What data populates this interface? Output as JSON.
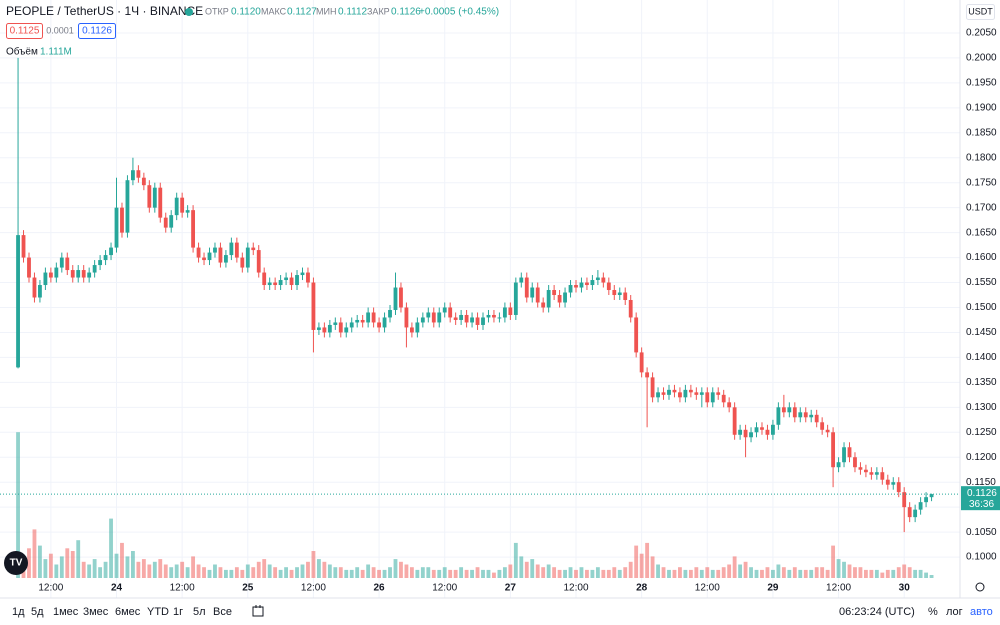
{
  "header": {
    "symbol": "PEOPLE / TetherUS · 1Ч · BINANCE",
    "open_label": "ОТКР",
    "open": "0.1120",
    "high_label": "МАКС",
    "high": "0.1127",
    "low_label": "МИН",
    "low": "0.1112",
    "close_label": "ЗАКР",
    "close": "0.1126",
    "change": "+0.0005 (+0.45%)",
    "sell": "0.1125",
    "spread": "0.0001",
    "buy": "0.1126",
    "volume_label": "Объём",
    "volume": "1.111M"
  },
  "axis": {
    "currency": "USDT",
    "last_price": "0.1126",
    "countdown": "36:36"
  },
  "toolbar": {
    "ranges": [
      "1д",
      "5д",
      "1мес",
      "3мес",
      "6мес",
      "YTD",
      "1г",
      "5л",
      "Все"
    ],
    "clock": "06:23:24 (UTC)",
    "percent": "%",
    "log": "лог",
    "auto": "авто"
  },
  "chart_data": {
    "type": "candlestick",
    "up_color": "#26a69a",
    "down_color": "#ef5350",
    "grid": true,
    "xlim": [
      -3.3,
      172.2
    ],
    "ylim": [
      0.0918,
      0.2116
    ],
    "xticks": [
      {
        "value": 6,
        "label": "12:00"
      },
      {
        "value": 18,
        "label": "24"
      },
      {
        "value": 30,
        "label": "12:00"
      },
      {
        "value": 42,
        "label": "25"
      },
      {
        "value": 54,
        "label": "12:00"
      },
      {
        "value": 66,
        "label": "26"
      },
      {
        "value": 78,
        "label": "12:00"
      },
      {
        "value": 90,
        "label": "27"
      },
      {
        "value": 102,
        "label": "12:00"
      },
      {
        "value": 114,
        "label": "28"
      },
      {
        "value": 126,
        "label": "12:00"
      },
      {
        "value": 138,
        "label": "29"
      },
      {
        "value": 150,
        "label": "12:00"
      },
      {
        "value": 162,
        "label": "30"
      }
    ],
    "yticks": [
      {
        "value": 0.1,
        "label": "0.1000"
      },
      {
        "value": 0.105,
        "label": "0.1050"
      },
      {
        "value": 0.11,
        "label": "0.1100"
      },
      {
        "value": 0.115,
        "label": "0.1150"
      },
      {
        "value": 0.12,
        "label": "0.1200"
      },
      {
        "value": 0.125,
        "label": "0.1250"
      },
      {
        "value": 0.13,
        "label": "0.1300"
      },
      {
        "value": 0.135,
        "label": "0.1350"
      },
      {
        "value": 0.14,
        "label": "0.1400"
      },
      {
        "value": 0.145,
        "label": "0.1450"
      },
      {
        "value": 0.15,
        "label": "0.1500"
      },
      {
        "value": 0.155,
        "label": "0.1550"
      },
      {
        "value": 0.16,
        "label": "0.1600"
      },
      {
        "value": 0.165,
        "label": "0.1650"
      },
      {
        "value": 0.17,
        "label": "0.1700"
      },
      {
        "value": 0.175,
        "label": "0.1750"
      },
      {
        "value": 0.18,
        "label": "0.1800"
      },
      {
        "value": 0.185,
        "label": "0.1850"
      },
      {
        "value": 0.19,
        "label": "0.1900"
      },
      {
        "value": 0.195,
        "label": "0.1950"
      },
      {
        "value": 0.2,
        "label": "0.2000"
      },
      {
        "value": 0.205,
        "label": "0.2050"
      }
    ],
    "last": 0.1126,
    "open": [
      0.138,
      0.1645,
      0.16,
      0.156,
      0.152,
      0.1545,
      0.157,
      0.156,
      0.158,
      0.16,
      0.1575,
      0.156,
      0.1575,
      0.156,
      0.157,
      0.1585,
      0.1595,
      0.1605,
      0.162,
      0.17,
      0.165,
      0.1755,
      0.1775,
      0.176,
      0.1745,
      0.17,
      0.174,
      0.168,
      0.166,
      0.1685,
      0.172,
      0.169,
      0.1695,
      0.162,
      0.16,
      0.1595,
      0.161,
      0.162,
      0.159,
      0.1605,
      0.163,
      0.16,
      0.158,
      0.162,
      0.1615,
      0.157,
      0.1545,
      0.155,
      0.1545,
      0.1555,
      0.156,
      0.1545,
      0.1565,
      0.157,
      0.155,
      0.1455,
      0.146,
      0.145,
      0.1465,
      0.147,
      0.145,
      0.146,
      0.147,
      0.1475,
      0.147,
      0.149,
      0.147,
      0.146,
      0.148,
      0.1495,
      0.154,
      0.15,
      0.146,
      0.145,
      0.147,
      0.148,
      0.149,
      0.147,
      0.149,
      0.15,
      0.148,
      0.1475,
      0.1485,
      0.147,
      0.148,
      0.1465,
      0.148,
      0.1485,
      0.148,
      0.148,
      0.15,
      0.1485,
      0.155,
      0.156,
      0.152,
      0.154,
      0.151,
      0.15,
      0.1535,
      0.1525,
      0.151,
      0.153,
      0.1545,
      0.154,
      0.155,
      0.1545,
      0.1555,
      0.156,
      0.155,
      0.1535,
      0.1525,
      0.153,
      0.1515,
      0.148,
      0.141,
      0.137,
      0.136,
      0.132,
      0.133,
      0.1325,
      0.1335,
      0.133,
      0.132,
      0.1335,
      0.133,
      0.1325,
      0.133,
      0.131,
      0.133,
      0.1325,
      0.131,
      0.13,
      0.1245,
      0.1255,
      0.124,
      0.125,
      0.126,
      0.1255,
      0.1245,
      0.1265,
      0.13,
      0.129,
      0.13,
      0.128,
      0.129,
      0.128,
      0.1285,
      0.127,
      0.1255,
      0.125,
      0.118,
      0.119,
      0.122,
      0.12,
      0.118,
      0.1175,
      0.117,
      0.1165,
      0.117,
      0.1155,
      0.1145,
      0.115,
      0.113,
      0.11,
      0.108,
      0.1095,
      0.111,
      0.112
    ],
    "high": [
      0.2,
      0.1655,
      0.161,
      0.157,
      0.1555,
      0.158,
      0.158,
      0.159,
      0.161,
      0.161,
      0.1585,
      0.1585,
      0.1585,
      0.158,
      0.1595,
      0.1605,
      0.1615,
      0.163,
      0.176,
      0.171,
      0.1765,
      0.18,
      0.1785,
      0.177,
      0.1755,
      0.175,
      0.175,
      0.169,
      0.1695,
      0.173,
      0.173,
      0.1705,
      0.1705,
      0.163,
      0.161,
      0.162,
      0.163,
      0.163,
      0.1615,
      0.164,
      0.164,
      0.161,
      0.163,
      0.163,
      0.1625,
      0.158,
      0.156,
      0.156,
      0.1565,
      0.157,
      0.157,
      0.1575,
      0.158,
      0.158,
      0.156,
      0.147,
      0.147,
      0.1475,
      0.148,
      0.148,
      0.147,
      0.148,
      0.1485,
      0.1485,
      0.15,
      0.15,
      0.148,
      0.149,
      0.1505,
      0.157,
      0.155,
      0.151,
      0.147,
      0.148,
      0.149,
      0.15,
      0.15,
      0.15,
      0.151,
      0.151,
      0.149,
      0.1495,
      0.1495,
      0.149,
      0.149,
      0.149,
      0.1495,
      0.1495,
      0.149,
      0.151,
      0.151,
      0.156,
      0.157,
      0.157,
      0.155,
      0.155,
      0.152,
      0.1545,
      0.1545,
      0.1535,
      0.154,
      0.1555,
      0.1555,
      0.156,
      0.156,
      0.1565,
      0.1575,
      0.157,
      0.156,
      0.1545,
      0.154,
      0.154,
      0.1525,
      0.149,
      0.142,
      0.138,
      0.137,
      0.134,
      0.134,
      0.1345,
      0.1345,
      0.134,
      0.1345,
      0.1345,
      0.134,
      0.134,
      0.134,
      0.134,
      0.134,
      0.1335,
      0.132,
      0.131,
      0.1265,
      0.1265,
      0.126,
      0.127,
      0.127,
      0.1265,
      0.1275,
      0.131,
      0.1325,
      0.131,
      0.131,
      0.13,
      0.13,
      0.1295,
      0.1295,
      0.128,
      0.1265,
      0.126,
      0.12,
      0.123,
      0.123,
      0.121,
      0.119,
      0.1185,
      0.118,
      0.118,
      0.118,
      0.1165,
      0.116,
      0.116,
      0.114,
      0.111,
      0.1105,
      0.112,
      0.113,
      0.1127
    ],
    "low": [
      0.1378,
      0.159,
      0.155,
      0.151,
      0.151,
      0.1535,
      0.155,
      0.155,
      0.157,
      0.1565,
      0.155,
      0.155,
      0.155,
      0.155,
      0.156,
      0.1575,
      0.1585,
      0.1595,
      0.161,
      0.164,
      0.164,
      0.1745,
      0.175,
      0.1735,
      0.169,
      0.169,
      0.167,
      0.165,
      0.165,
      0.1675,
      0.168,
      0.168,
      0.161,
      0.159,
      0.1585,
      0.1585,
      0.16,
      0.158,
      0.158,
      0.1595,
      0.159,
      0.157,
      0.157,
      0.1605,
      0.156,
      0.1535,
      0.1535,
      0.1535,
      0.1535,
      0.1545,
      0.1535,
      0.1535,
      0.1555,
      0.154,
      0.141,
      0.1445,
      0.144,
      0.144,
      0.1455,
      0.144,
      0.144,
      0.145,
      0.146,
      0.146,
      0.146,
      0.146,
      0.145,
      0.145,
      0.147,
      0.1485,
      0.149,
      0.142,
      0.144,
      0.144,
      0.146,
      0.147,
      0.146,
      0.146,
      0.148,
      0.147,
      0.1465,
      0.1465,
      0.146,
      0.146,
      0.1455,
      0.1455,
      0.147,
      0.147,
      0.147,
      0.147,
      0.1475,
      0.1475,
      0.154,
      0.151,
      0.151,
      0.15,
      0.149,
      0.149,
      0.1515,
      0.15,
      0.15,
      0.152,
      0.153,
      0.153,
      0.1535,
      0.1535,
      0.1545,
      0.154,
      0.1525,
      0.1515,
      0.1515,
      0.1505,
      0.147,
      0.14,
      0.136,
      0.126,
      0.131,
      0.131,
      0.1315,
      0.1315,
      0.132,
      0.131,
      0.131,
      0.132,
      0.1315,
      0.13,
      0.13,
      0.13,
      0.1315,
      0.13,
      0.129,
      0.1235,
      0.1235,
      0.12,
      0.123,
      0.124,
      0.1245,
      0.1235,
      0.1235,
      0.1255,
      0.128,
      0.128,
      0.127,
      0.127,
      0.127,
      0.127,
      0.126,
      0.1245,
      0.124,
      0.114,
      0.117,
      0.118,
      0.119,
      0.117,
      0.1165,
      0.116,
      0.1155,
      0.1155,
      0.1145,
      0.1135,
      0.1135,
      0.112,
      0.105,
      0.107,
      0.107,
      0.1085,
      0.11,
      0.1112
    ],
    "close": [
      0.1645,
      0.16,
      0.156,
      0.152,
      0.1545,
      0.157,
      0.156,
      0.158,
      0.16,
      0.1575,
      0.156,
      0.1575,
      0.156,
      0.157,
      0.1585,
      0.1595,
      0.1605,
      0.162,
      0.17,
      0.165,
      0.1755,
      0.1775,
      0.176,
      0.1745,
      0.17,
      0.174,
      0.168,
      0.166,
      0.1685,
      0.172,
      0.169,
      0.1695,
      0.162,
      0.16,
      0.1595,
      0.161,
      0.162,
      0.159,
      0.1605,
      0.163,
      0.16,
      0.158,
      0.162,
      0.1615,
      0.157,
      0.1545,
      0.155,
      0.1545,
      0.1555,
      0.156,
      0.1545,
      0.1565,
      0.157,
      0.155,
      0.1455,
      0.146,
      0.145,
      0.1465,
      0.147,
      0.145,
      0.146,
      0.147,
      0.1475,
      0.147,
      0.149,
      0.147,
      0.146,
      0.148,
      0.1495,
      0.154,
      0.15,
      0.146,
      0.145,
      0.147,
      0.148,
      0.149,
      0.147,
      0.149,
      0.15,
      0.148,
      0.1475,
      0.1485,
      0.147,
      0.148,
      0.1465,
      0.148,
      0.1485,
      0.148,
      0.148,
      0.15,
      0.1485,
      0.155,
      0.156,
      0.152,
      0.154,
      0.151,
      0.15,
      0.1535,
      0.1525,
      0.151,
      0.153,
      0.1545,
      0.154,
      0.155,
      0.1545,
      0.1555,
      0.156,
      0.155,
      0.1535,
      0.1525,
      0.153,
      0.1515,
      0.148,
      0.141,
      0.137,
      0.136,
      0.132,
      0.133,
      0.1325,
      0.1335,
      0.133,
      0.132,
      0.1335,
      0.133,
      0.1325,
      0.133,
      0.131,
      0.133,
      0.1325,
      0.131,
      0.13,
      0.1245,
      0.1255,
      0.124,
      0.125,
      0.126,
      0.1255,
      0.1245,
      0.1265,
      0.13,
      0.129,
      0.13,
      0.128,
      0.129,
      0.128,
      0.1285,
      0.127,
      0.1255,
      0.125,
      0.118,
      0.119,
      0.122,
      0.12,
      0.118,
      0.1175,
      0.117,
      0.1165,
      0.117,
      0.1155,
      0.1145,
      0.115,
      0.113,
      0.11,
      0.108,
      0.1095,
      0.111,
      0.112,
      0.1126
    ],
    "volume": [
      54,
      8,
      11,
      18,
      12,
      7,
      9,
      5,
      8,
      11,
      10,
      14,
      6,
      5,
      7,
      4,
      6,
      22,
      9,
      13,
      8,
      10,
      6,
      7,
      5,
      6,
      7,
      5,
      4,
      5,
      6,
      4,
      8,
      5,
      4,
      3,
      5,
      4,
      3,
      3,
      4,
      3,
      5,
      4,
      6,
      7,
      5,
      4,
      3,
      4,
      3,
      4,
      5,
      6,
      10,
      7,
      6,
      5,
      4,
      4,
      3,
      3,
      4,
      3,
      5,
      4,
      3,
      3,
      4,
      7,
      6,
      5,
      4,
      3,
      4,
      4,
      3,
      3,
      4,
      3,
      3,
      4,
      3,
      3,
      4,
      3,
      3,
      2,
      3,
      4,
      5,
      13,
      8,
      6,
      7,
      5,
      4,
      5,
      4,
      3,
      3,
      4,
      3,
      4,
      3,
      3,
      4,
      3,
      3,
      4,
      3,
      4,
      6,
      12,
      9,
      13,
      8,
      5,
      4,
      3,
      3,
      4,
      3,
      3,
      4,
      3,
      4,
      3,
      3,
      4,
      5,
      8,
      5,
      6,
      4,
      3,
      3,
      4,
      3,
      5,
      4,
      3,
      4,
      3,
      3,
      3,
      4,
      4,
      3,
      12,
      7,
      6,
      5,
      4,
      4,
      3,
      3,
      3,
      2,
      3,
      3,
      4,
      5,
      4,
      3,
      3,
      2,
      1.111
    ]
  }
}
